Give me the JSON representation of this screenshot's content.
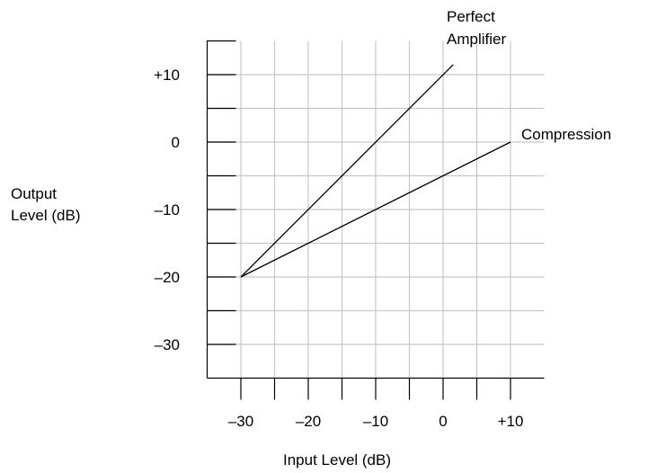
{
  "chart_data": {
    "type": "line",
    "title": "",
    "xlabel": "Input Level (dB)",
    "ylabel_lines": [
      "Output",
      "Level (dB)"
    ],
    "xlim": [
      -35,
      15
    ],
    "ylim": [
      -35,
      15
    ],
    "x_tick_labels": [
      {
        "value": -30,
        "label": "–30"
      },
      {
        "value": -20,
        "label": "–20"
      },
      {
        "value": -10,
        "label": "–10"
      },
      {
        "value": 0,
        "label": "0"
      },
      {
        "value": 10,
        "label": "+10"
      }
    ],
    "y_tick_labels": [
      {
        "value": 10,
        "label": "+10"
      },
      {
        "value": 0,
        "label": "0"
      },
      {
        "value": -10,
        "label": "–10"
      },
      {
        "value": -20,
        "label": "–20"
      },
      {
        "value": -30,
        "label": "–30"
      }
    ],
    "grid": true,
    "grid_color": "#c8c8c8",
    "line_color": "#000000",
    "series": [
      {
        "id": "amp",
        "name_lines": [
          "Perfect",
          "Amplifier"
        ],
        "x": [
          -30,
          1.5
        ],
        "y": [
          -20,
          11.5
        ]
      },
      {
        "id": "comp",
        "name_lines": [
          "Compression"
        ],
        "x": [
          -30,
          10
        ],
        "y": [
          -20,
          0
        ]
      }
    ]
  }
}
